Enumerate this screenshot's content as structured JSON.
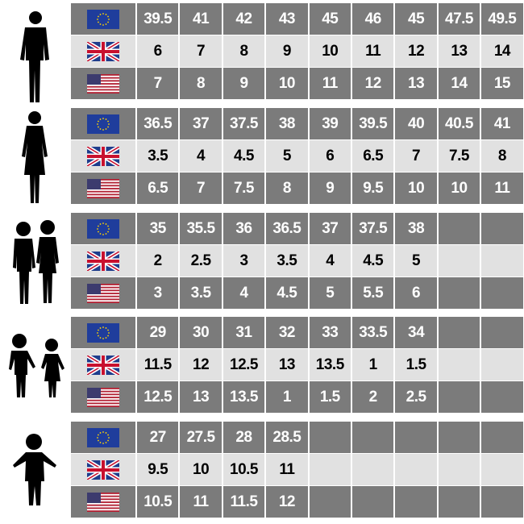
{
  "groups": [
    {
      "eu": [
        39.5,
        41,
        42,
        43,
        45,
        46,
        45,
        47.5,
        49.5
      ],
      "uk": [
        6,
        7,
        8,
        9,
        10,
        11,
        12,
        13,
        14
      ],
      "us": [
        7,
        8,
        9,
        10,
        11,
        12,
        13,
        14,
        15
      ]
    },
    {
      "eu": [
        36.5,
        37,
        37.5,
        38,
        39,
        39.5,
        40,
        40.5,
        41
      ],
      "uk": [
        3.5,
        4,
        4.5,
        5,
        6,
        6.5,
        7,
        7.5,
        8
      ],
      "us": [
        6.5,
        7,
        7.5,
        8,
        9,
        9.5,
        10,
        10,
        11
      ]
    },
    {
      "eu": [
        35,
        35.5,
        36,
        36.5,
        37,
        37.5,
        38
      ],
      "uk": [
        2,
        2.5,
        3,
        3.5,
        4,
        4.5,
        5
      ],
      "us": [
        3,
        3.5,
        4,
        4.5,
        5,
        5.5,
        6
      ]
    },
    {
      "eu": [
        29,
        30,
        31,
        32,
        33,
        33.5,
        34
      ],
      "uk": [
        11.5,
        12,
        12.5,
        13,
        13.5,
        1,
        1.5
      ],
      "us": [
        12.5,
        13,
        13.5,
        1,
        1.5,
        2,
        2.5
      ]
    },
    {
      "eu": [
        27,
        27.5,
        28,
        28.5
      ],
      "uk": [
        9.5,
        10,
        10.5,
        11
      ],
      "us": [
        10.5,
        11,
        11.5,
        12
      ]
    }
  ]
}
